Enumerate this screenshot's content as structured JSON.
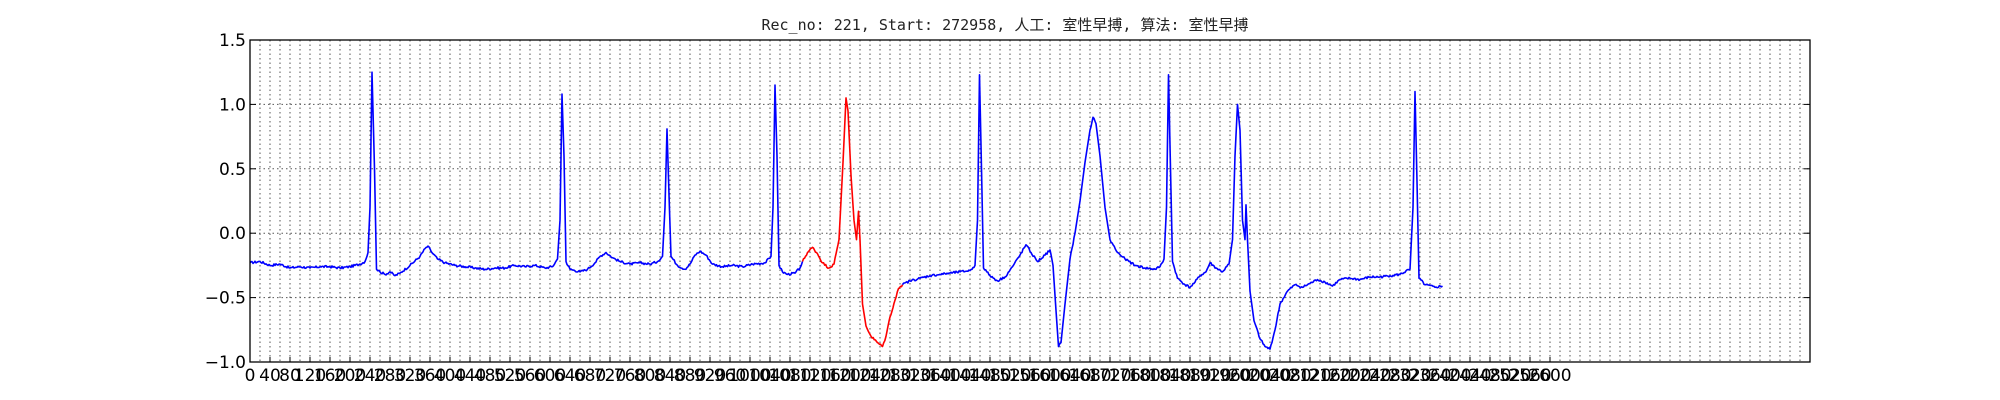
{
  "chart_data": {
    "type": "line",
    "title": "Rec_no: 221, Start: 272958, 人工: 室性早搏, 算法: 室性早搏",
    "xlabel": "",
    "ylabel": "",
    "xlim": [
      0,
      3060
    ],
    "ylim": [
      -1.0,
      1.5
    ],
    "grid": true,
    "x_tick_step": 40,
    "y_ticks": [
      -1.0,
      -0.5,
      0.0,
      0.5,
      1.0,
      1.5
    ],
    "y_tick_labels": [
      "−1.0",
      "−0.5",
      "0.0",
      "0.5",
      "1.0",
      "1.5"
    ],
    "x_tick_labels": [
      "0",
      "40",
      "80",
      "120",
      "160",
      "200",
      "240",
      "280",
      "320",
      "360",
      "400",
      "440",
      "480",
      "520",
      "560",
      "600",
      "640",
      "680",
      "720",
      "760",
      "800",
      "840",
      "880",
      "920",
      "960",
      "1000",
      "1040",
      "1080",
      "1120",
      "1160",
      "1200",
      "1240",
      "1280",
      "1320",
      "1360",
      "1400",
      "1440",
      "1480",
      "1520",
      "1560",
      "1600",
      "1640",
      "1680",
      "1720",
      "1760",
      "1800",
      "1840",
      "1880",
      "1920",
      "1960",
      "2000",
      "2040",
      "2080",
      "2120",
      "2160",
      "2200",
      "2240",
      "2280",
      "2320",
      "2360",
      "2400",
      "2440",
      "2480",
      "2520",
      "2560",
      "2600"
    ],
    "series": [
      {
        "color": "#0000ff",
        "points": [
          [
            0,
            -0.23
          ],
          [
            20,
            -0.22
          ],
          [
            40,
            -0.25
          ],
          [
            60,
            -0.24
          ],
          [
            80,
            -0.27
          ],
          [
            100,
            -0.26
          ],
          [
            120,
            -0.27
          ],
          [
            140,
            -0.26
          ],
          [
            160,
            -0.26
          ],
          [
            180,
            -0.27
          ],
          [
            200,
            -0.26
          ],
          [
            220,
            -0.24
          ],
          [
            230,
            -0.22
          ],
          [
            236,
            -0.15
          ],
          [
            240,
            0.2
          ],
          [
            244,
            1.25
          ],
          [
            249,
            0.5
          ],
          [
            253,
            -0.28
          ],
          [
            260,
            -0.3
          ],
          [
            270,
            -0.32
          ],
          [
            280,
            -0.3
          ],
          [
            290,
            -0.33
          ],
          [
            300,
            -0.31
          ],
          [
            320,
            -0.25
          ],
          [
            340,
            -0.18
          ],
          [
            350,
            -0.12
          ],
          [
            356,
            -0.1
          ],
          [
            362,
            -0.14
          ],
          [
            375,
            -0.2
          ],
          [
            390,
            -0.23
          ],
          [
            410,
            -0.25
          ],
          [
            430,
            -0.26
          ],
          [
            450,
            -0.27
          ],
          [
            470,
            -0.28
          ],
          [
            490,
            -0.27
          ],
          [
            510,
            -0.27
          ],
          [
            530,
            -0.25
          ],
          [
            550,
            -0.26
          ],
          [
            570,
            -0.25
          ],
          [
            590,
            -0.27
          ],
          [
            605,
            -0.26
          ],
          [
            615,
            -0.2
          ],
          [
            620,
            0.1
          ],
          [
            624,
            1.08
          ],
          [
            628,
            0.6
          ],
          [
            632,
            -0.22
          ],
          [
            640,
            -0.28
          ],
          [
            660,
            -0.3
          ],
          [
            675,
            -0.28
          ],
          [
            690,
            -0.23
          ],
          [
            700,
            -0.18
          ],
          [
            712,
            -0.15
          ],
          [
            725,
            -0.19
          ],
          [
            740,
            -0.22
          ],
          [
            760,
            -0.24
          ],
          [
            780,
            -0.23
          ],
          [
            800,
            -0.24
          ],
          [
            815,
            -0.22
          ],
          [
            825,
            -0.18
          ],
          [
            830,
            0.2
          ],
          [
            834,
            0.81
          ],
          [
            838,
            0.3
          ],
          [
            842,
            -0.18
          ],
          [
            855,
            -0.25
          ],
          [
            870,
            -0.28
          ],
          [
            880,
            -0.24
          ],
          [
            890,
            -0.17
          ],
          [
            900,
            -0.14
          ],
          [
            912,
            -0.17
          ],
          [
            925,
            -0.24
          ],
          [
            945,
            -0.26
          ],
          [
            965,
            -0.25
          ],
          [
            985,
            -0.26
          ],
          [
            1005,
            -0.24
          ],
          [
            1030,
            -0.23
          ],
          [
            1042,
            -0.18
          ],
          [
            1046,
            0.2
          ],
          [
            1050,
            1.15
          ],
          [
            1054,
            0.6
          ],
          [
            1058,
            -0.25
          ],
          [
            1065,
            -0.3
          ],
          [
            1075,
            -0.32
          ],
          [
            1090,
            -0.31
          ],
          [
            1100,
            -0.27
          ],
          [
            1105,
            -0.22
          ]
        ]
      },
      {
        "color": "#ff0000",
        "points": [
          [
            1105,
            -0.22
          ],
          [
            1115,
            -0.15
          ],
          [
            1125,
            -0.11
          ],
          [
            1135,
            -0.16
          ],
          [
            1145,
            -0.23
          ],
          [
            1158,
            -0.27
          ],
          [
            1168,
            -0.24
          ],
          [
            1178,
            -0.05
          ],
          [
            1186,
            0.55
          ],
          [
            1192,
            1.05
          ],
          [
            1196,
            0.95
          ],
          [
            1202,
            0.45
          ],
          [
            1208,
            0.1
          ],
          [
            1213,
            -0.05
          ],
          [
            1217,
            0.17
          ],
          [
            1220,
            -0.05
          ],
          [
            1225,
            -0.55
          ],
          [
            1232,
            -0.72
          ],
          [
            1242,
            -0.8
          ],
          [
            1255,
            -0.85
          ],
          [
            1265,
            -0.88
          ],
          [
            1272,
            -0.8
          ],
          [
            1280,
            -0.65
          ],
          [
            1290,
            -0.52
          ],
          [
            1297,
            -0.43
          ],
          [
            1305,
            -0.4
          ]
        ]
      },
      {
        "color": "#0000ff",
        "points": [
          [
            1305,
            -0.4
          ],
          [
            1320,
            -0.37
          ],
          [
            1340,
            -0.35
          ],
          [
            1360,
            -0.33
          ],
          [
            1380,
            -0.32
          ],
          [
            1400,
            -0.31
          ],
          [
            1420,
            -0.3
          ],
          [
            1440,
            -0.29
          ],
          [
            1450,
            -0.25
          ],
          [
            1455,
            0.1
          ],
          [
            1459,
            1.23
          ],
          [
            1463,
            0.5
          ],
          [
            1467,
            -0.27
          ],
          [
            1480,
            -0.33
          ],
          [
            1495,
            -0.37
          ],
          [
            1510,
            -0.34
          ],
          [
            1525,
            -0.26
          ],
          [
            1540,
            -0.17
          ],
          [
            1552,
            -0.09
          ],
          [
            1562,
            -0.15
          ],
          [
            1575,
            -0.22
          ],
          [
            1590,
            -0.17
          ],
          [
            1600,
            -0.13
          ],
          [
            1606,
            -0.25
          ],
          [
            1612,
            -0.6
          ],
          [
            1617,
            -0.88
          ],
          [
            1622,
            -0.85
          ],
          [
            1630,
            -0.55
          ],
          [
            1640,
            -0.2
          ],
          [
            1650,
            0.0
          ],
          [
            1660,
            0.25
          ],
          [
            1670,
            0.55
          ],
          [
            1680,
            0.8
          ],
          [
            1686,
            0.9
          ],
          [
            1692,
            0.85
          ],
          [
            1700,
            0.6
          ],
          [
            1710,
            0.2
          ],
          [
            1720,
            -0.05
          ],
          [
            1735,
            -0.15
          ],
          [
            1750,
            -0.2
          ],
          [
            1770,
            -0.25
          ],
          [
            1790,
            -0.27
          ],
          [
            1810,
            -0.28
          ],
          [
            1820,
            -0.26
          ],
          [
            1828,
            -0.2
          ],
          [
            1833,
            0.2
          ],
          [
            1837,
            1.23
          ],
          [
            1841,
            0.5
          ],
          [
            1845,
            -0.22
          ],
          [
            1855,
            -0.35
          ],
          [
            1870,
            -0.4
          ],
          [
            1880,
            -0.42
          ],
          [
            1890,
            -0.38
          ],
          [
            1900,
            -0.33
          ],
          [
            1912,
            -0.3
          ],
          [
            1920,
            -0.23
          ],
          [
            1932,
            -0.27
          ],
          [
            1945,
            -0.3
          ],
          [
            1958,
            -0.24
          ],
          [
            1965,
            -0.05
          ],
          [
            1970,
            0.6
          ],
          [
            1975,
            1.0
          ],
          [
            1980,
            0.8
          ],
          [
            1985,
            0.1
          ],
          [
            1990,
            -0.05
          ],
          [
            1992,
            0.22
          ],
          [
            1995,
            -0.05
          ],
          [
            2000,
            -0.45
          ],
          [
            2008,
            -0.68
          ],
          [
            2020,
            -0.82
          ],
          [
            2030,
            -0.88
          ],
          [
            2040,
            -0.9
          ],
          [
            2050,
            -0.75
          ],
          [
            2060,
            -0.55
          ],
          [
            2075,
            -0.45
          ],
          [
            2090,
            -0.4
          ],
          [
            2105,
            -0.42
          ],
          [
            2120,
            -0.39
          ],
          [
            2135,
            -0.36
          ],
          [
            2150,
            -0.38
          ],
          [
            2165,
            -0.41
          ],
          [
            2180,
            -0.36
          ],
          [
            2200,
            -0.35
          ],
          [
            2220,
            -0.36
          ],
          [
            2240,
            -0.34
          ],
          [
            2260,
            -0.34
          ],
          [
            2280,
            -0.33
          ],
          [
            2300,
            -0.32
          ],
          [
            2320,
            -0.28
          ],
          [
            2326,
            0.2
          ],
          [
            2330,
            1.1
          ],
          [
            2334,
            0.4
          ],
          [
            2338,
            -0.35
          ],
          [
            2350,
            -0.4
          ],
          [
            2370,
            -0.42
          ],
          [
            2385,
            -0.41
          ]
        ]
      }
    ]
  }
}
